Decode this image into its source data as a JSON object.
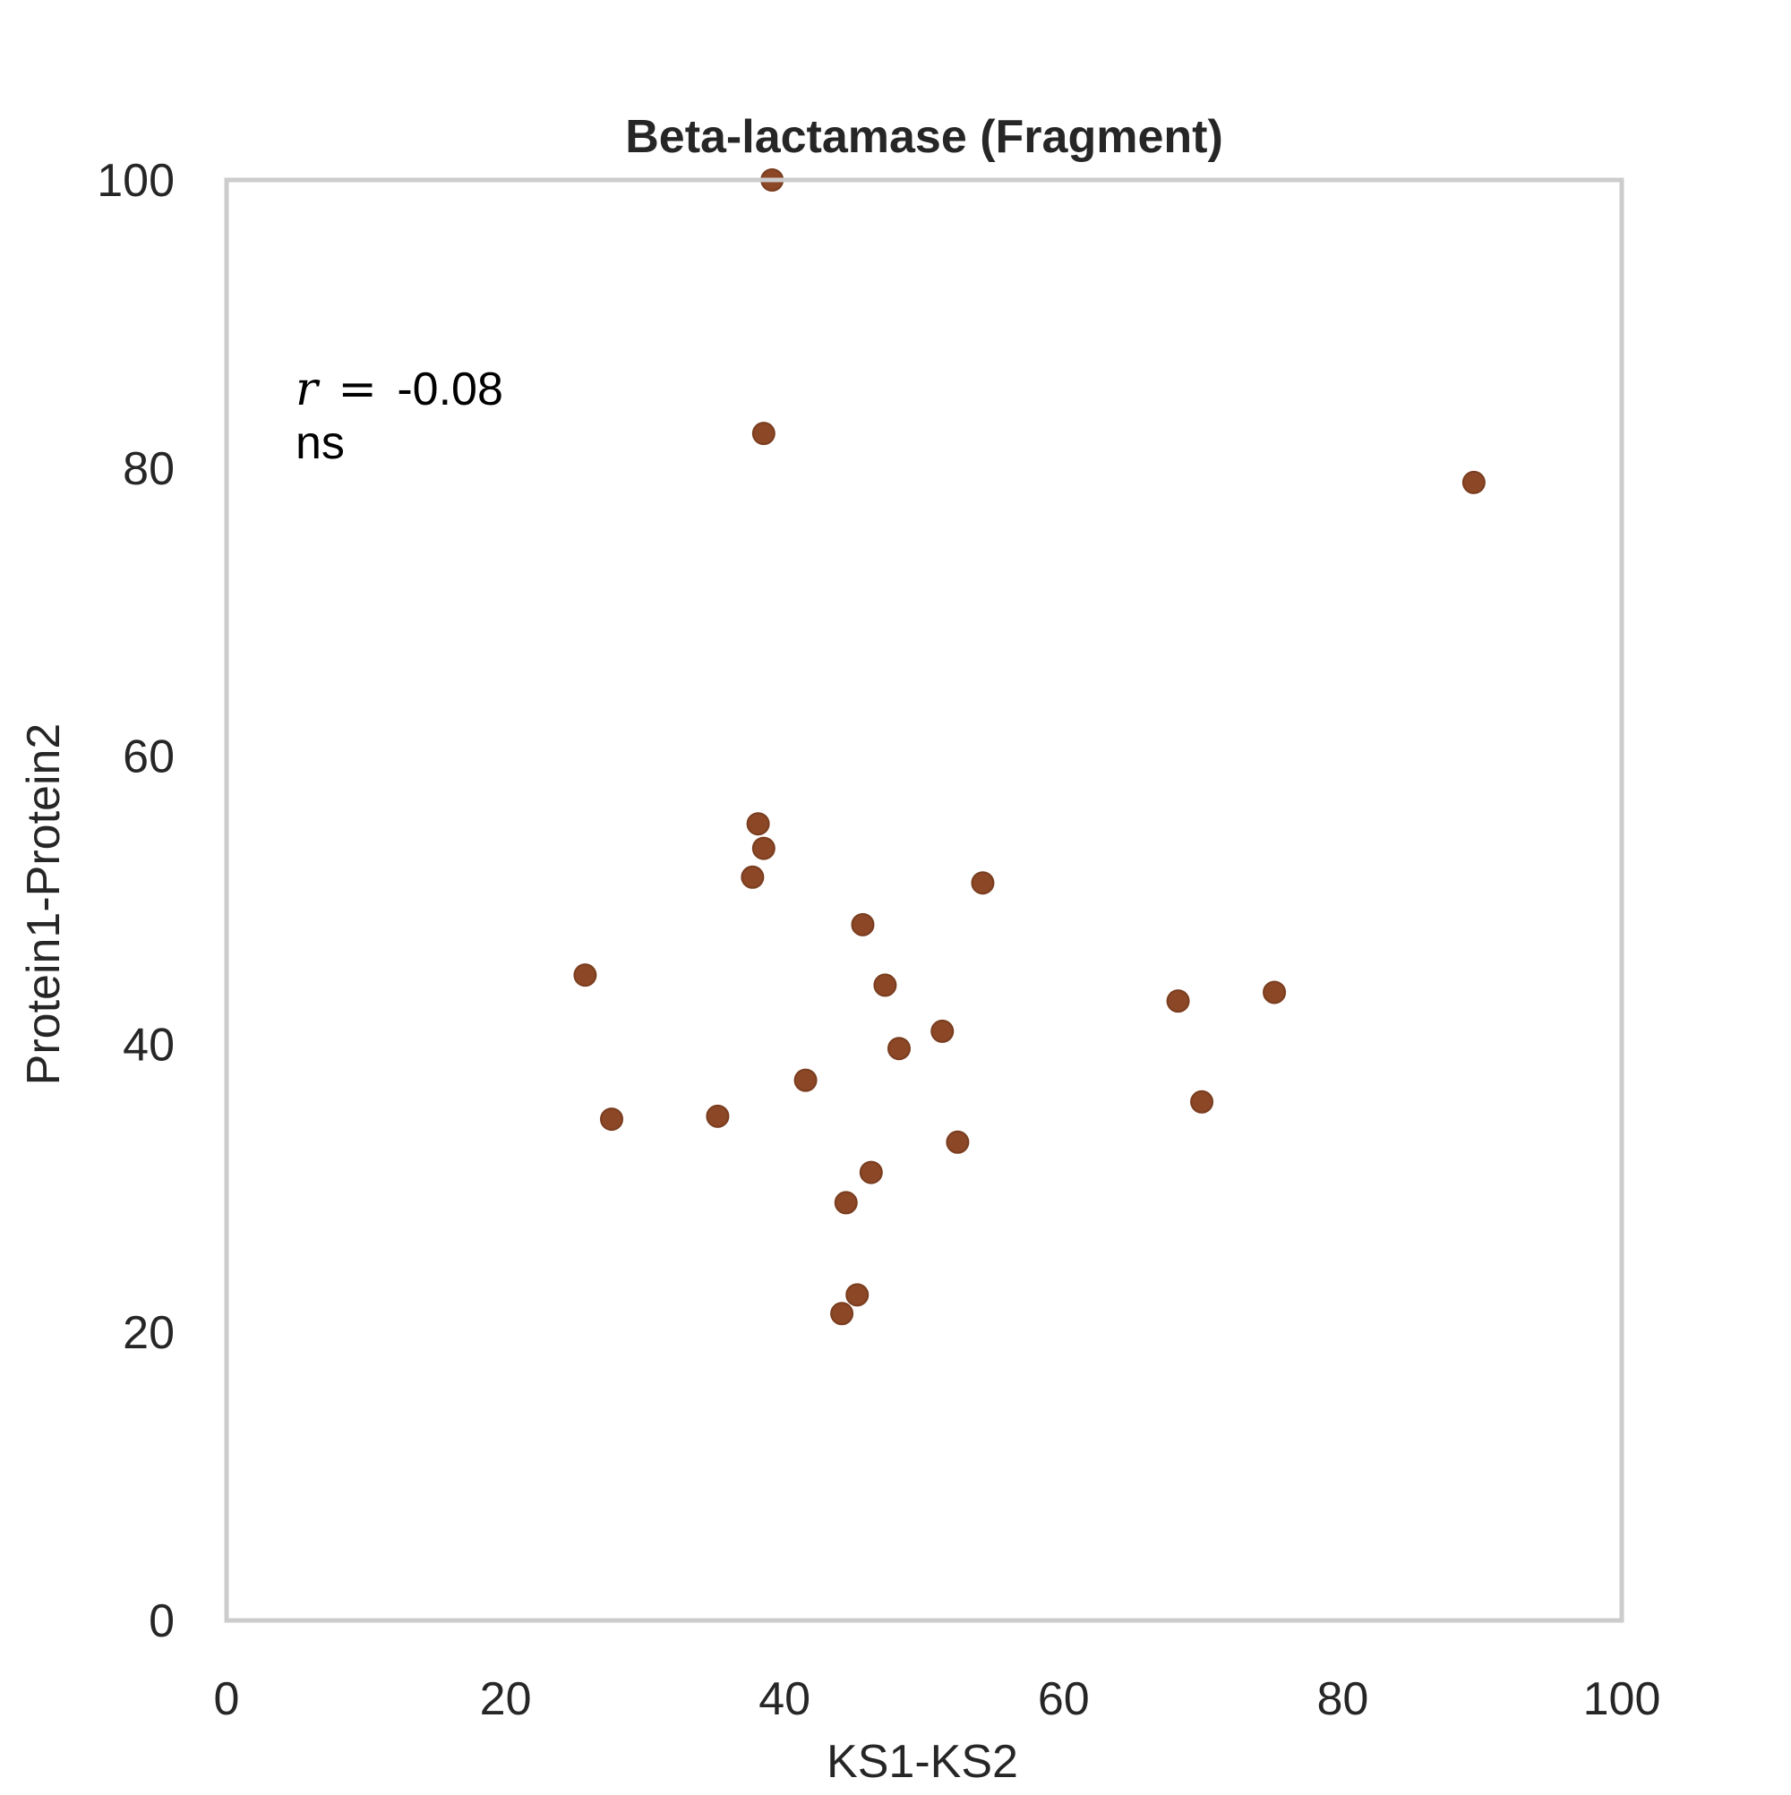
{
  "colors": {
    "point_fill": "#8b4726",
    "point_stroke": "#7a3d1f",
    "frame": "#cccccc",
    "background": "#ffffff"
  },
  "chart_data": {
    "type": "scatter",
    "title": "Beta-lactamase (Fragment)",
    "xlabel": "KS1-KS2",
    "ylabel": "Protein1-Protein2",
    "xlim": [
      0,
      100
    ],
    "ylim": [
      0,
      100
    ],
    "xticks": [
      0,
      20,
      40,
      60,
      80,
      100
    ],
    "yticks": [
      0,
      20,
      40,
      60,
      80,
      100
    ],
    "grid": false,
    "annotation": {
      "r_symbol": "r",
      "equals": "=",
      "r_value": "-0.08",
      "significance": "ns"
    },
    "points": [
      {
        "x": 39.1,
        "y": 100.0
      },
      {
        "x": 38.5,
        "y": 82.4
      },
      {
        "x": 89.4,
        "y": 79.0
      },
      {
        "x": 38.1,
        "y": 55.3
      },
      {
        "x": 38.5,
        "y": 53.6
      },
      {
        "x": 37.7,
        "y": 51.6
      },
      {
        "x": 54.2,
        "y": 51.2
      },
      {
        "x": 45.6,
        "y": 48.3
      },
      {
        "x": 25.7,
        "y": 44.8
      },
      {
        "x": 47.2,
        "y": 44.1
      },
      {
        "x": 75.1,
        "y": 43.6
      },
      {
        "x": 68.2,
        "y": 43.0
      },
      {
        "x": 51.3,
        "y": 40.9
      },
      {
        "x": 48.2,
        "y": 39.7
      },
      {
        "x": 41.5,
        "y": 37.5
      },
      {
        "x": 69.9,
        "y": 36.0
      },
      {
        "x": 35.2,
        "y": 35.0
      },
      {
        "x": 27.6,
        "y": 34.8
      },
      {
        "x": 52.4,
        "y": 33.2
      },
      {
        "x": 46.2,
        "y": 31.1
      },
      {
        "x": 44.4,
        "y": 29.0
      },
      {
        "x": 45.2,
        "y": 22.6
      },
      {
        "x": 44.1,
        "y": 21.3
      }
    ]
  }
}
